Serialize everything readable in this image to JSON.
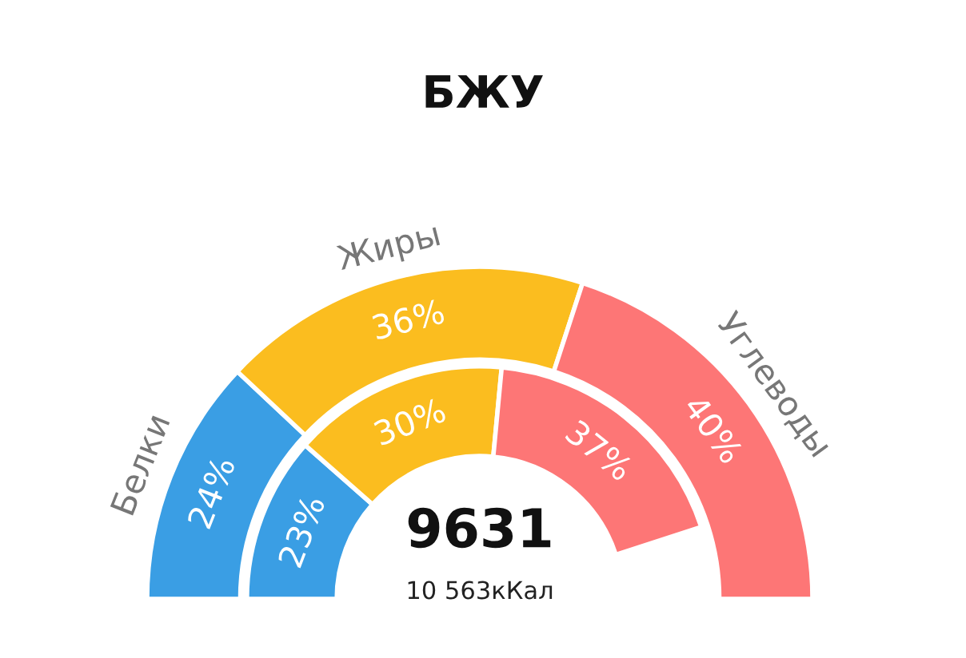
{
  "chart_data": {
    "type": "donut",
    "title": "БЖУ",
    "categories": [
      "Белки",
      "Жиры",
      "Углеводы"
    ],
    "colors": [
      "#3a9ee4",
      "#fbbd1f",
      "#fd7676"
    ],
    "series": [
      {
        "values": [
          24,
          36,
          40
        ],
        "value_labels": [
          "24%",
          "36%",
          "40%"
        ]
      },
      {
        "values": [
          23,
          30,
          37
        ],
        "value_labels": [
          "23%",
          "30%",
          "37%"
        ]
      }
    ],
    "annotations": [
      "9631",
      "10 563кКал"
    ]
  }
}
